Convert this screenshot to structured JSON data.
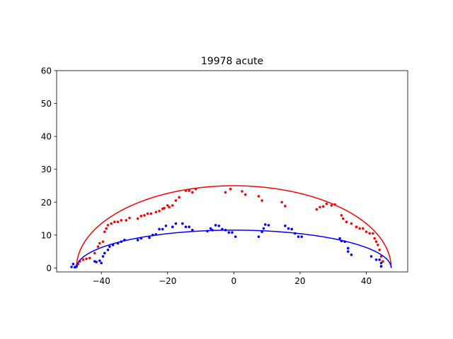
{
  "chart_data": {
    "type": "scatter",
    "title": "19978 acute",
    "xlabel": "",
    "ylabel": "",
    "xlim": [
      -53.5,
      52.5
    ],
    "ylim": [
      -1.2,
      60
    ],
    "xticks": [
      -40,
      -20,
      0,
      20,
      40
    ],
    "yticks": [
      0,
      10,
      20,
      30,
      40,
      50,
      60
    ],
    "xtick_labels": [
      "−40",
      "−20",
      "0",
      "20",
      "40"
    ],
    "ytick_labels": [
      "0",
      "10",
      "20",
      "30",
      "40",
      "50",
      "60"
    ],
    "grid": false,
    "legend": "none",
    "series": [
      {
        "color": "#ff0000",
        "curve": {
          "shape": "half-ellipse",
          "center_x": 0,
          "half_width": 47.5,
          "height": 25
        },
        "points": [
          [
            -47.5,
            0.5
          ],
          [
            -47,
            1.2
          ],
          [
            -46.5,
            2
          ],
          [
            -45.5,
            2.5
          ],
          [
            -44.5,
            2.8
          ],
          [
            -43.5,
            3
          ],
          [
            -42,
            4.5
          ],
          [
            -41,
            6.5
          ],
          [
            -40.5,
            7.5
          ],
          [
            -39.5,
            8
          ],
          [
            -39,
            11
          ],
          [
            -38.5,
            12
          ],
          [
            -38,
            13
          ],
          [
            -37,
            13.5
          ],
          [
            -36,
            14
          ],
          [
            -35,
            14
          ],
          [
            -34,
            14.5
          ],
          [
            -32.5,
            14.5
          ],
          [
            -31.5,
            15.2
          ],
          [
            -29,
            15
          ],
          [
            -28,
            15.8
          ],
          [
            -27,
            16
          ],
          [
            -26,
            16.5
          ],
          [
            -25,
            16.5
          ],
          [
            -23.5,
            17
          ],
          [
            -22.5,
            17.3
          ],
          [
            -21.5,
            18
          ],
          [
            -21,
            18.2
          ],
          [
            -20,
            19
          ],
          [
            -19.5,
            18.5
          ],
          [
            -18.5,
            19
          ],
          [
            -17.5,
            20.5
          ],
          [
            -16.5,
            21.5
          ],
          [
            -14.5,
            23.5
          ],
          [
            -13.5,
            23.5
          ],
          [
            -12.5,
            23
          ],
          [
            -11.5,
            24
          ],
          [
            -2.5,
            23
          ],
          [
            -1,
            24
          ],
          [
            2.5,
            23.3
          ],
          [
            3.5,
            22.3
          ],
          [
            7.5,
            21.8
          ],
          [
            8.5,
            20.5
          ],
          [
            14.5,
            20
          ],
          [
            15.5,
            18.8
          ],
          [
            25,
            17.8
          ],
          [
            26,
            18.5
          ],
          [
            27,
            18.7
          ],
          [
            28,
            19.5
          ],
          [
            29.5,
            19
          ],
          [
            30.5,
            19.3
          ],
          [
            32.5,
            16
          ],
          [
            33,
            15
          ],
          [
            34,
            14
          ],
          [
            35.5,
            13.5
          ],
          [
            37,
            12.5
          ],
          [
            38,
            12
          ],
          [
            39,
            12
          ],
          [
            40,
            11
          ],
          [
            41,
            10.5
          ],
          [
            42,
            10.5
          ],
          [
            42.5,
            9
          ],
          [
            43,
            8
          ],
          [
            43.5,
            7
          ],
          [
            44,
            5.5
          ],
          [
            44.5,
            3.5
          ],
          [
            45,
            2
          ],
          [
            44.5,
            0.5
          ]
        ]
      },
      {
        "color": "#0000ff",
        "curve": {
          "shape": "half-ellipse",
          "center_x": 0,
          "half_width": 47.5,
          "height": 11.5
        },
        "points": [
          [
            -49,
            0.3
          ],
          [
            -48.5,
            1.2
          ],
          [
            -48,
            0.2
          ],
          [
            -47.5,
            0.5
          ],
          [
            -42,
            2
          ],
          [
            -41.5,
            1.8
          ],
          [
            -40.5,
            2.2
          ],
          [
            -40,
            1.5
          ],
          [
            -39.5,
            3.5
          ],
          [
            -39,
            4.5
          ],
          [
            -38,
            5.5
          ],
          [
            -37.5,
            6.5
          ],
          [
            -36.5,
            7
          ],
          [
            -35,
            7.5
          ],
          [
            -34,
            8
          ],
          [
            -33,
            8.5
          ],
          [
            -29,
            8.5
          ],
          [
            -28,
            9
          ],
          [
            -25.5,
            9.2
          ],
          [
            -24.5,
            10
          ],
          [
            -23.5,
            10.2
          ],
          [
            -22.5,
            11.8
          ],
          [
            -21.5,
            11.8
          ],
          [
            -20.5,
            12.8
          ],
          [
            -18.5,
            12.5
          ],
          [
            -17.5,
            13.5
          ],
          [
            -15.5,
            13.5
          ],
          [
            -14.5,
            12.5
          ],
          [
            -13.5,
            12.5
          ],
          [
            -12.5,
            11.5
          ],
          [
            -8,
            11.2
          ],
          [
            -7,
            12
          ],
          [
            -6.5,
            11.5
          ],
          [
            -5.5,
            13
          ],
          [
            -4.5,
            12.8
          ],
          [
            -3.5,
            11.8
          ],
          [
            -2.5,
            11.5
          ],
          [
            -1.5,
            10.8
          ],
          [
            -0.5,
            10.8
          ],
          [
            0.5,
            9.5
          ],
          [
            7.5,
            9.5
          ],
          [
            8.5,
            11
          ],
          [
            9,
            12
          ],
          [
            9.5,
            13.2
          ],
          [
            10.5,
            13
          ],
          [
            15.5,
            12.8
          ],
          [
            16.5,
            12
          ],
          [
            17.5,
            11.8
          ],
          [
            18.5,
            10.5
          ],
          [
            19.5,
            9.5
          ],
          [
            20.5,
            9.5
          ],
          [
            32,
            9
          ],
          [
            32.5,
            8.2
          ],
          [
            33.5,
            8
          ],
          [
            34.5,
            6
          ],
          [
            34.5,
            5
          ],
          [
            35.5,
            4
          ],
          [
            41.5,
            3.5
          ],
          [
            43,
            2.5
          ],
          [
            44,
            2.5
          ],
          [
            44.5,
            1.5
          ],
          [
            44.5,
            0.5
          ]
        ]
      }
    ]
  }
}
